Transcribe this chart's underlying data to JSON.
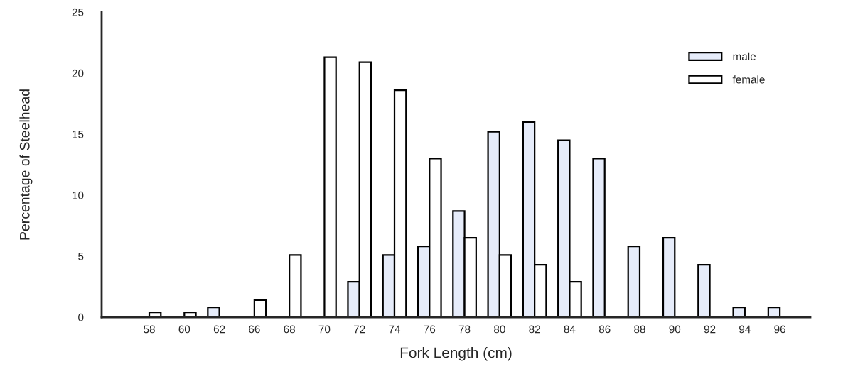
{
  "chart_data": {
    "type": "bar",
    "xlabel": "Fork Length (cm)",
    "ylabel": "Percentage of Steelhead",
    "categories": [
      "58",
      "60",
      "62",
      "66",
      "68",
      "70",
      "72",
      "74",
      "76",
      "78",
      "80",
      "82",
      "84",
      "86",
      "88",
      "90",
      "92",
      "94",
      "96"
    ],
    "series": [
      {
        "name": "male",
        "color": "#e6ecfa",
        "values": [
          0,
          0,
          0.8,
          0,
          0,
          0,
          2.9,
          5.1,
          5.8,
          8.7,
          15.2,
          16.0,
          14.5,
          13.0,
          5.8,
          6.5,
          4.3,
          0.8,
          0.8
        ]
      },
      {
        "name": "female",
        "color": "#ffffff",
        "values": [
          0.4,
          0.4,
          0,
          1.4,
          5.1,
          21.3,
          20.9,
          18.6,
          13.0,
          6.5,
          5.1,
          4.3,
          2.9,
          0,
          0,
          0,
          0,
          0,
          0
        ]
      }
    ],
    "ylim": [
      0,
      25
    ],
    "yticks": [
      0,
      5,
      10,
      15,
      20,
      25
    ],
    "grid": false,
    "legend": "top right"
  }
}
